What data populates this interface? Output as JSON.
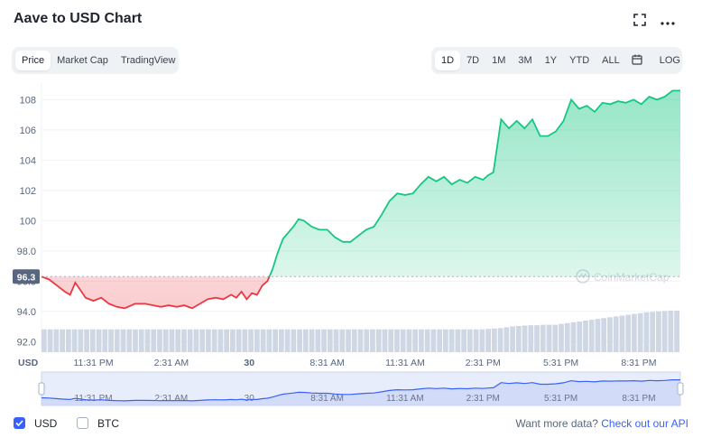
{
  "header": {
    "title": "Aave to USD Chart",
    "expand_icon": "expand-icon",
    "more_icon": "more-options-icon"
  },
  "tabs": [
    {
      "label": "Price",
      "active": true
    },
    {
      "label": "Market Cap",
      "active": false
    },
    {
      "label": "TradingView",
      "active": false
    }
  ],
  "ranges": [
    {
      "label": "1D",
      "active": true
    },
    {
      "label": "7D",
      "active": false
    },
    {
      "label": "1M",
      "active": false
    },
    {
      "label": "3M",
      "active": false
    },
    {
      "label": "1Y",
      "active": false
    },
    {
      "label": "YTD",
      "active": false
    },
    {
      "label": "ALL",
      "active": false
    }
  ],
  "calendar_icon": "calendar-icon",
  "log_label": "LOG",
  "colors": {
    "up": "#16c784",
    "down": "#ea3943",
    "accent": "#3861fb",
    "volume": "#cfd6e4"
  },
  "chart_data": {
    "type": "line",
    "y_ticks": [
      "108",
      "106",
      "104",
      "102",
      "100",
      "98.0",
      "96.0",
      "94.0",
      "92.0"
    ],
    "y_tick_values": [
      108,
      106,
      104,
      102,
      100,
      98,
      96,
      94,
      92
    ],
    "ylim": [
      91.3,
      109.1
    ],
    "open_price": 96.3,
    "open_price_label": "96.3",
    "y_unit_label": "USD",
    "x_tick_labels": [
      "11:31 PM",
      "2:31 AM",
      "30",
      "8:31 AM",
      "11:31 AM",
      "2:31 PM",
      "5:31 PM",
      "8:31 PM"
    ],
    "x_tick_hours": [
      2,
      5,
      8,
      11,
      14,
      17,
      20,
      23
    ],
    "x_hours_range": [
      0,
      24.6
    ],
    "series": [
      {
        "hours": [
          0,
          0.3,
          0.6,
          0.9,
          1.1,
          1.3,
          1.5,
          1.7,
          2.0,
          2.3,
          2.6,
          2.9,
          3.2,
          3.6,
          4.0,
          4.3,
          4.6,
          4.9,
          5.2,
          5.5,
          5.8,
          6.1,
          6.4,
          6.7,
          7.0,
          7.3,
          7.5,
          7.7,
          7.9,
          8.1,
          8.3,
          8.5,
          8.7,
          8.9,
          9.1,
          9.3,
          9.5,
          9.7,
          9.9,
          10.1,
          10.4,
          10.7,
          11.0,
          11.3,
          11.6,
          11.9,
          12.2,
          12.5,
          12.8,
          13.1,
          13.4,
          13.7,
          14.0,
          14.3,
          14.6,
          14.9,
          15.2,
          15.5,
          15.8,
          16.1,
          16.4,
          16.7,
          17.0,
          17.2,
          17.4,
          17.7,
          18.0,
          18.3,
          18.6,
          18.9,
          19.2,
          19.5,
          19.8,
          20.1,
          20.4,
          20.7,
          21.0,
          21.3,
          21.6,
          21.9,
          22.2,
          22.5,
          22.8,
          23.1,
          23.4,
          23.7,
          24.0,
          24.3,
          24.6
        ],
        "values": [
          96.3,
          96.1,
          95.7,
          95.3,
          95.1,
          95.9,
          95.4,
          94.9,
          94.7,
          94.9,
          94.5,
          94.3,
          94.2,
          94.5,
          94.5,
          94.4,
          94.3,
          94.4,
          94.3,
          94.4,
          94.2,
          94.5,
          94.8,
          94.9,
          94.8,
          95.1,
          94.9,
          95.3,
          94.8,
          95.2,
          95.1,
          95.7,
          96.0,
          96.8,
          97.9,
          98.8,
          99.2,
          99.6,
          100.1,
          100.0,
          99.6,
          99.4,
          99.4,
          98.9,
          98.6,
          98.6,
          99.0,
          99.4,
          99.6,
          100.4,
          101.3,
          101.8,
          101.7,
          101.8,
          102.4,
          102.9,
          102.6,
          102.9,
          102.4,
          102.7,
          102.5,
          102.9,
          102.7,
          103.0,
          103.2,
          106.7,
          106.1,
          106.6,
          106.1,
          106.7,
          105.6,
          105.6,
          105.9,
          106.6,
          108.0,
          107.4,
          107.6,
          107.2,
          107.8,
          107.7,
          107.9,
          107.8,
          108.0,
          107.7,
          108.2,
          108.0,
          108.2,
          108.6,
          108.6
        ]
      }
    ],
    "volume": [
      0.55,
      0.55,
      0.55,
      0.55,
      0.55,
      0.55,
      0.55,
      0.55,
      0.55,
      0.55,
      0.55,
      0.55,
      0.55,
      0.55,
      0.55,
      0.55,
      0.55,
      0.55,
      0.55,
      0.55,
      0.55,
      0.55,
      0.55,
      0.55,
      0.55,
      0.55,
      0.55,
      0.55,
      0.55,
      0.55,
      0.55,
      0.55,
      0.55,
      0.55,
      0.55,
      0.55,
      0.55,
      0.55,
      0.55,
      0.55,
      0.55,
      0.55,
      0.55,
      0.55,
      0.55,
      0.55,
      0.55,
      0.55,
      0.55,
      0.55,
      0.55,
      0.55,
      0.55,
      0.55,
      0.55,
      0.55,
      0.55,
      0.55,
      0.55,
      0.55,
      0.55,
      0.55,
      0.55,
      0.55,
      0.55,
      0.55,
      0.55,
      0.55,
      0.55,
      0.55,
      0.55,
      0.55,
      0.55,
      0.56,
      0.57,
      0.58,
      0.6,
      0.62,
      0.63,
      0.64,
      0.65,
      0.65,
      0.66,
      0.66,
      0.66,
      0.68,
      0.7,
      0.72,
      0.74,
      0.76,
      0.78,
      0.8,
      0.82,
      0.84,
      0.86,
      0.88,
      0.9,
      0.92,
      0.94,
      0.96,
      0.97,
      0.98,
      0.99,
      1.0,
      1.0
    ],
    "watermark": "CoinMarketCap",
    "grid": true,
    "legend": "none"
  },
  "navigator": {
    "x_tick_labels": [
      "11:31 PM",
      "2:31 AM",
      "30",
      "8:31 AM",
      "11:31 AM",
      "2:31 PM",
      "5:31 PM",
      "8:31 PM"
    ]
  },
  "footer": {
    "currencies": [
      {
        "label": "USD",
        "checked": true
      },
      {
        "label": "BTC",
        "checked": false
      }
    ],
    "more_text": "Want more data?",
    "more_link": "Check out our API"
  }
}
